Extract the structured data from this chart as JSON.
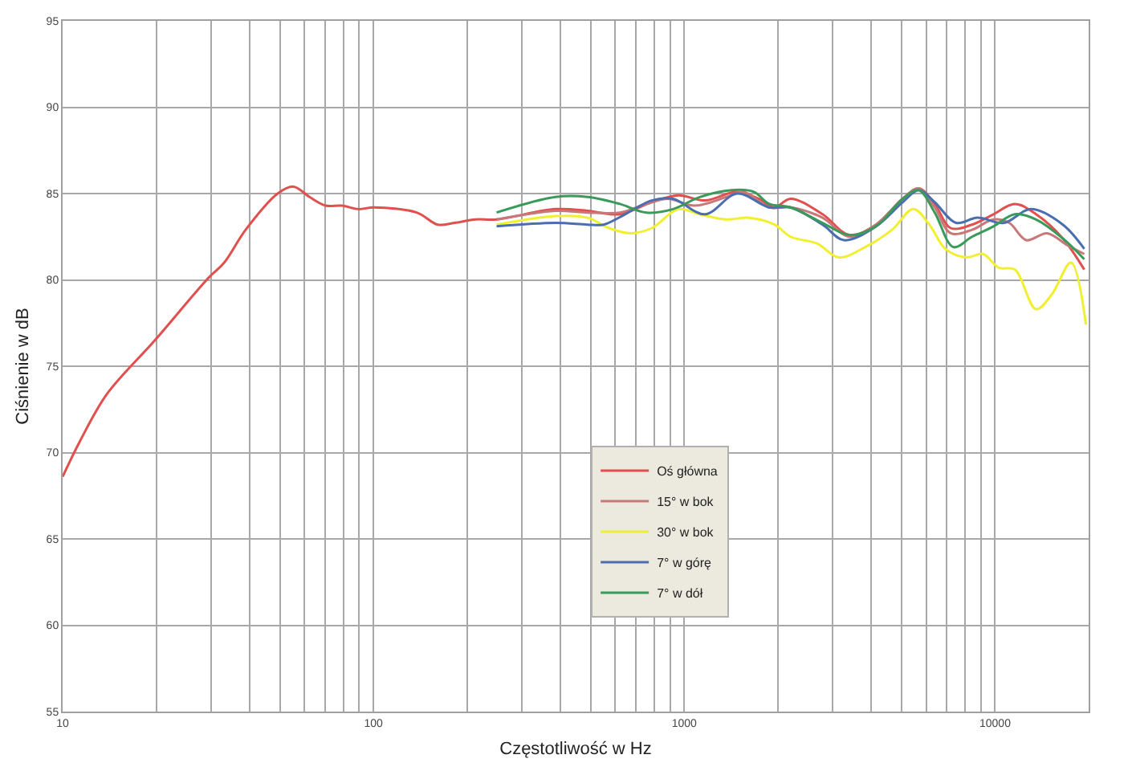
{
  "chart_data": {
    "type": "line",
    "xlabel": "Częstotliwość w Hz",
    "ylabel": "Ciśnienie w dB",
    "log": "x",
    "grid": true,
    "legend": "center",
    "marker": "none",
    "line_style": "solid",
    "xlim": [
      10,
      20000
    ],
    "ylim": [
      55,
      95
    ],
    "xticks": [
      10,
      {
        "value": 20,
        "label": null
      },
      {
        "value": 30,
        "label": null
      },
      {
        "value": 40,
        "label": null
      },
      {
        "value": 50,
        "label": null
      },
      {
        "value": 60,
        "label": null
      },
      {
        "value": 70,
        "label": null
      },
      {
        "value": 80,
        "label": null
      },
      {
        "value": 90,
        "label": null
      },
      100,
      {
        "value": 200,
        "label": null
      },
      {
        "value": 300,
        "label": null
      },
      {
        "value": 400,
        "label": null
      },
      {
        "value": 500,
        "label": null
      },
      {
        "value": 600,
        "label": null
      },
      {
        "value": 700,
        "label": null
      },
      {
        "value": 800,
        "label": null
      },
      {
        "value": 900,
        "label": null
      },
      1000,
      {
        "value": 2000,
        "label": null
      },
      {
        "value": 3000,
        "label": null
      },
      {
        "value": 4000,
        "label": null
      },
      {
        "value": 5000,
        "label": null
      },
      {
        "value": 6000,
        "label": null
      },
      {
        "value": 7000,
        "label": null
      },
      {
        "value": 8000,
        "label": null
      },
      {
        "value": 9000,
        "label": null
      },
      10000,
      {
        "value": 20000,
        "label": null
      }
    ],
    "yticks": [
      55,
      60,
      65,
      70,
      75,
      80,
      85,
      90,
      95
    ],
    "series": [
      {
        "name": "Oś główna",
        "color": "#e0504f",
        "x": [
          10,
          11.4,
          13.9,
          19.8,
          29.4,
          33.1,
          38.8,
          49.2,
          55.4,
          62.3,
          70.2,
          79.2,
          89.2,
          100.6,
          137.8,
          161,
          182,
          213,
          249,
          385,
          489,
          620,
          786,
          957,
          1167,
          1479,
          1733,
          1951,
          2198,
          2786,
          3396,
          4140,
          5044,
          5680,
          6393,
          7198,
          8431,
          9885,
          11570,
          13550,
          16520,
          19360
        ],
        "values": [
          68.6,
          70.7,
          73.4,
          76.5,
          80.1,
          81.0,
          82.9,
          85.0,
          85.4,
          84.8,
          84.3,
          84.3,
          84.1,
          84.2,
          83.9,
          83.2,
          83.3,
          83.5,
          83.5,
          84.1,
          84.0,
          83.8,
          84.5,
          84.9,
          84.6,
          85.1,
          84.7,
          84.2,
          84.7,
          83.8,
          82.6,
          83.2,
          84.7,
          85.3,
          84.4,
          83.0,
          83.2,
          83.8,
          84.4,
          83.8,
          82.4,
          80.6
        ]
      },
      {
        "name": "15° w bok",
        "color": "#c87878",
        "x": [
          249,
          385,
          489,
          620,
          755,
          885,
          1079,
          1368,
          1546,
          1876,
          2198,
          2786,
          3396,
          4140,
          5044,
          5680,
          6393,
          7198,
          8431,
          9885,
          11110,
          12600,
          14700,
          17110,
          19360
        ],
        "values": [
          83.5,
          84.0,
          83.9,
          83.9,
          84.4,
          84.7,
          84.3,
          84.8,
          85.1,
          84.2,
          84.2,
          83.6,
          82.5,
          83.2,
          84.7,
          85.3,
          84.2,
          82.7,
          82.9,
          83.5,
          83.3,
          82.3,
          82.7,
          82.0,
          81.5
        ]
      },
      {
        "name": "30° w bok",
        "color": "#f0f030",
        "x": [
          249,
          385,
          489,
          573,
          670,
          786,
          957,
          1122,
          1368,
          1603,
          1951,
          2198,
          2679,
          3140,
          3822,
          4659,
          5460,
          6147,
          6918,
          8110,
          9138,
          10290,
          11570,
          13550,
          15280,
          17540,
          19600
        ],
        "values": [
          83.2,
          83.7,
          83.6,
          83.0,
          82.7,
          83.0,
          84.1,
          83.8,
          83.5,
          83.6,
          83.2,
          82.5,
          82.1,
          81.3,
          81.9,
          82.9,
          84.1,
          83.2,
          81.8,
          81.3,
          81.5,
          80.7,
          80.6,
          78.3,
          79.2,
          81.0,
          77.4
        ]
      },
      {
        "name": "7° w górę",
        "color": "#4a6eb0",
        "x": [
          249,
          385,
          489,
          550,
          645,
          786,
          920,
          1167,
          1479,
          1876,
          2198,
          2786,
          3266,
          4140,
          5044,
          5680,
          6393,
          7495,
          8770,
          10690,
          13030,
          16520,
          19360
        ],
        "values": [
          83.1,
          83.3,
          83.2,
          83.2,
          83.8,
          84.6,
          84.7,
          83.8,
          85.0,
          84.2,
          84.2,
          83.2,
          82.3,
          83.1,
          84.5,
          85.2,
          84.5,
          83.3,
          83.6,
          83.3,
          84.1,
          83.2,
          81.8
        ]
      },
      {
        "name": "7° w dół",
        "color": "#3a9a5a",
        "x": [
          249,
          385,
          489,
          620,
          755,
          920,
          1122,
          1422,
          1673,
          1876,
          2198,
          2786,
          3396,
          4140,
          5044,
          5680,
          6393,
          7345,
          8431,
          9885,
          11570,
          13550,
          16520,
          19360
        ],
        "values": [
          83.9,
          84.8,
          84.8,
          84.4,
          83.9,
          84.1,
          84.8,
          85.2,
          85.1,
          84.4,
          84.2,
          83.3,
          82.6,
          83.1,
          84.7,
          85.2,
          83.9,
          81.9,
          82.5,
          83.1,
          83.8,
          83.5,
          82.4,
          81.2
        ]
      }
    ]
  }
}
